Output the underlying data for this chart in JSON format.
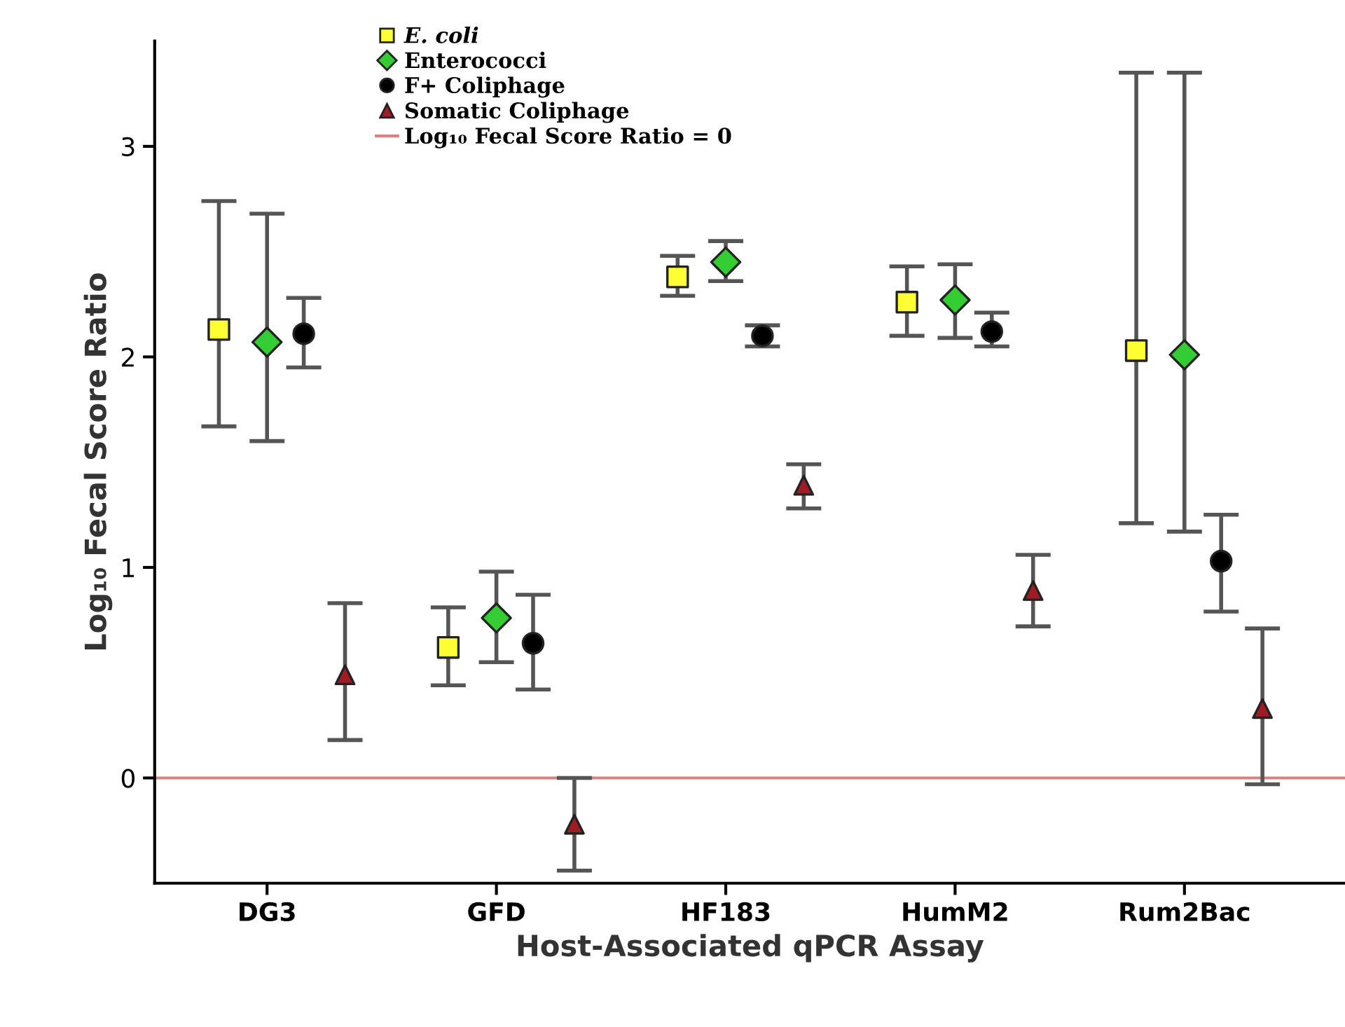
{
  "chart_data": {
    "type": "scatter",
    "xlabel": "Host-Associated qPCR Assay",
    "ylabel": "Log₁₀ Fecal Score Ratio",
    "categories": [
      "DG3",
      "GFD",
      "HF183",
      "HumM2",
      "Rum2Bac"
    ],
    "ylim": [
      -0.5,
      3.5
    ],
    "yticks": [
      0,
      1,
      2,
      3
    ],
    "grid": false,
    "legend": "top",
    "series": [
      {
        "name": "E. coli",
        "color": "#ffff33",
        "marker": "square",
        "values": [
          2.13,
          0.62,
          2.38,
          2.26,
          2.03
        ],
        "errors": [
          [
            1.67,
            2.74
          ],
          [
            0.44,
            0.81
          ],
          [
            2.29,
            2.48
          ],
          [
            2.1,
            2.43
          ],
          [
            1.21,
            3.35
          ]
        ]
      },
      {
        "name": "Enterococci",
        "color": "#33cc33",
        "marker": "diamond",
        "values": [
          2.07,
          0.76,
          2.45,
          2.27,
          2.01
        ],
        "errors": [
          [
            1.6,
            2.68
          ],
          [
            0.55,
            0.98
          ],
          [
            2.36,
            2.55
          ],
          [
            2.09,
            2.44
          ],
          [
            1.17,
            3.35
          ]
        ]
      },
      {
        "name": "F+ Coliphage",
        "color": "#000000",
        "marker": "circle",
        "values": [
          2.11,
          0.64,
          2.1,
          2.12,
          1.03
        ],
        "errors": [
          [
            1.95,
            2.28
          ],
          [
            0.42,
            0.87
          ],
          [
            2.05,
            2.15
          ],
          [
            2.05,
            2.21
          ],
          [
            0.79,
            1.25
          ]
        ]
      },
      {
        "name": "Somatic Coliphage",
        "color": "#a01c24",
        "marker": "triangle",
        "values": [
          0.49,
          -0.22,
          1.39,
          0.89,
          0.33
        ],
        "errors": [
          [
            0.18,
            0.83
          ],
          [
            -0.44,
            0.0
          ],
          [
            1.28,
            1.49
          ],
          [
            0.72,
            1.06
          ],
          [
            -0.03,
            0.71
          ]
        ]
      }
    ],
    "ref_lines": [
      {
        "axis": "y",
        "value": 0,
        "label": "Log₁₀ Fecal Score Ratio = 0",
        "color": "#d98080",
        "line_style": "solid"
      }
    ]
  }
}
